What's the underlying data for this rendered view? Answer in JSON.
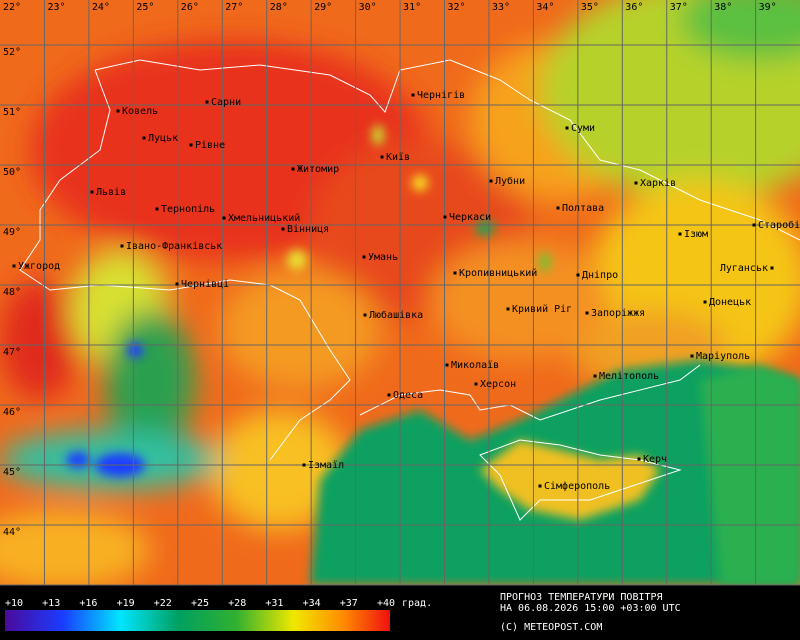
{
  "map": {
    "longitude_labels": [
      "22°",
      "23°",
      "24°",
      "25°",
      "26°",
      "27°",
      "28°",
      "29°",
      "30°",
      "31°",
      "32°",
      "33°",
      "34°",
      "35°",
      "36°",
      "37°",
      "38°",
      "39°"
    ],
    "latitude_labels": [
      "52°",
      "51°",
      "50°",
      "49°",
      "48°",
      "47°",
      "46°",
      "45°",
      "44°"
    ],
    "cities": [
      "Ковель",
      "Сарни",
      "Луцьк",
      "Рівне",
      "Чернігів",
      "Суми",
      "Київ",
      "Житомир",
      "Лубни",
      "Харків",
      "Львів",
      "Тернопіль",
      "Хмельницький",
      "Вінниця",
      "Черкаси",
      "Полтава",
      "Ізюм",
      "Старобі",
      "Ужгород",
      "Івано-Франківськ",
      "Умань",
      "Кропивницький",
      "Дніпро",
      "Луганськ",
      "Чернівці",
      "Донецьк",
      "Любашівка",
      "Кривий Ріг",
      "Запоріжжя",
      "Маріуполь",
      "Миколаїв",
      "Мелітополь",
      "Херсон",
      "Одеса",
      "Ізмаїл",
      "Керч",
      "Сімферополь"
    ]
  },
  "legend": {
    "ticks": [
      "+10",
      "+13",
      "+16",
      "+19",
      "+22",
      "+25",
      "+28",
      "+31",
      "+34",
      "+37",
      "+40"
    ],
    "unit": "град."
  },
  "caption": {
    "title": "ПРОГНОЗ ТЕМПЕРАТУРИ ПОВІТРЯ",
    "time": "НА 06.08.2026 15:00 +03:00 UTC",
    "credit": "(C) METEOPOST.COM"
  }
}
